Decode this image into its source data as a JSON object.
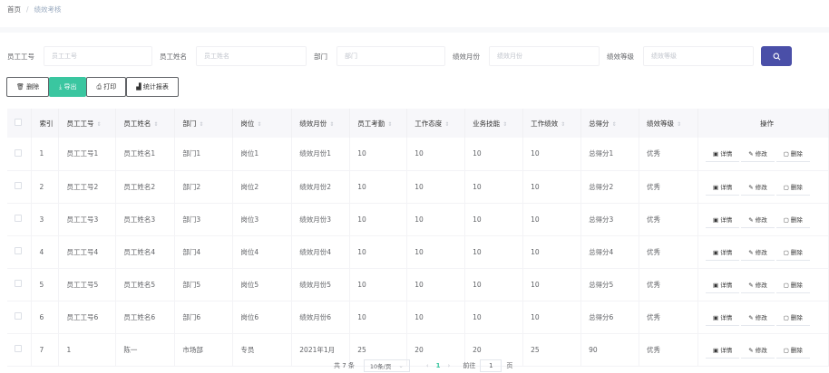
{
  "breadcrumb": {
    "home": "首页",
    "separator": "/",
    "current": "绩效考核"
  },
  "search": {
    "fields": [
      {
        "label": "员工工号",
        "placeholder": "员工工号"
      },
      {
        "label": "员工姓名",
        "placeholder": "员工姓名"
      },
      {
        "label": "部门",
        "placeholder": "部门"
      },
      {
        "label": "绩效月份",
        "placeholder": "绩效月份"
      },
      {
        "label": "绩效等级",
        "placeholder": "绩效等级"
      }
    ],
    "button_icon": "search-icon"
  },
  "toolbar": {
    "delete": "删除",
    "export": "导出",
    "print": "打印",
    "report": "统计报表",
    "accent": "#3ac6a0"
  },
  "table": {
    "columns": [
      "索引",
      "员工工号",
      "员工姓名",
      "部门",
      "岗位",
      "绩效月份",
      "员工考勤",
      "工作态度",
      "业务技能",
      "工作绩效",
      "总得分",
      "绩效等级",
      "操作"
    ],
    "rows": [
      [
        "1",
        "员工工号1",
        "员工姓名1",
        "部门1",
        "岗位1",
        "绩效月份1",
        "10",
        "10",
        "10",
        "10",
        "总得分1",
        "优秀"
      ],
      [
        "2",
        "员工工号2",
        "员工姓名2",
        "部门2",
        "岗位2",
        "绩效月份2",
        "10",
        "10",
        "10",
        "10",
        "总得分2",
        "优秀"
      ],
      [
        "3",
        "员工工号3",
        "员工姓名3",
        "部门3",
        "岗位3",
        "绩效月份3",
        "10",
        "10",
        "10",
        "10",
        "总得分3",
        "优秀"
      ],
      [
        "4",
        "员工工号4",
        "员工姓名4",
        "部门4",
        "岗位4",
        "绩效月份4",
        "10",
        "10",
        "10",
        "10",
        "总得分4",
        "优秀"
      ],
      [
        "5",
        "员工工号5",
        "员工姓名5",
        "部门5",
        "岗位5",
        "绩效月份5",
        "10",
        "10",
        "10",
        "10",
        "总得分5",
        "优秀"
      ],
      [
        "6",
        "员工工号6",
        "员工姓名6",
        "部门6",
        "岗位6",
        "绩效月份6",
        "10",
        "10",
        "10",
        "10",
        "总得分6",
        "优秀"
      ],
      [
        "7",
        "1",
        "陈一",
        "市场部",
        "专员",
        "2021年1月",
        "25",
        "20",
        "20",
        "25",
        "90",
        "优秀"
      ]
    ],
    "actions": {
      "detail": "详情",
      "edit": "修改",
      "delete": "删除"
    }
  },
  "pagination": {
    "total": "共 7 条",
    "page_size": "10条/页",
    "current": "1",
    "goto_prefix": "前往",
    "goto_value": "1",
    "goto_suffix": "页"
  }
}
